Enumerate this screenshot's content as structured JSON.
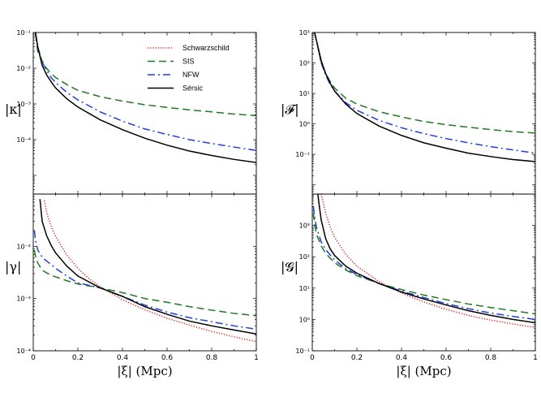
{
  "legend_placement": "top-right of top-left panel",
  "styles": {
    "Schwarzschild": {
      "color": "#e0201a",
      "dash": "1.2,2"
    },
    "SIS": {
      "color": "#1f7a1f",
      "dash": "9,5"
    },
    "NFW": {
      "color": "#1f3fdd",
      "dash": "9,4,2,4"
    },
    "Sérsic": {
      "color": "#000000",
      "dash": ""
    }
  },
  "chart_data": [
    {
      "id": "kappa",
      "type": "line",
      "ylabel": "|κ|",
      "xlabel": "",
      "xlim": [
        0,
        1
      ],
      "ylim": [
        3e-06,
        0.1
      ],
      "yscale": "log",
      "ytick_labels": [
        {
          "v": 0.1,
          "t": "10⁻¹"
        },
        {
          "v": 0.01,
          "t": "10⁻²"
        },
        {
          "v": 0.001,
          "t": "10⁻³"
        },
        {
          "v": 0.0001,
          "t": "10⁻⁴"
        }
      ],
      "xtick_labels": [],
      "legend": [
        "Schwarzschild",
        "SIS",
        "NFW",
        "Sérsic"
      ],
      "series": [
        {
          "name": "SIS",
          "x": [
            0.01,
            0.02,
            0.04,
            0.06,
            0.08,
            0.1,
            0.15,
            0.2,
            0.3,
            0.4,
            0.5,
            0.6,
            0.7,
            0.8,
            0.9,
            1.0
          ],
          "y": [
            0.09,
            0.03,
            0.016,
            0.0098,
            0.0072,
            0.0055,
            0.0035,
            0.0024,
            0.0016,
            0.0012,
            0.00095,
            0.0008,
            0.00068,
            0.0006,
            0.00052,
            0.00047
          ]
        },
        {
          "name": "NFW",
          "x": [
            0.01,
            0.02,
            0.04,
            0.06,
            0.08,
            0.1,
            0.15,
            0.2,
            0.3,
            0.4,
            0.5,
            0.6,
            0.7,
            0.8,
            0.9,
            1.0
          ],
          "y": [
            0.1,
            0.04,
            0.015,
            0.0085,
            0.0055,
            0.004,
            0.0021,
            0.0013,
            0.0006,
            0.00033,
            0.0002,
            0.00014,
            0.0001,
            7.8e-05,
            6.2e-05,
            5e-05
          ]
        },
        {
          "name": "Sérsic",
          "x": [
            0.01,
            0.02,
            0.04,
            0.06,
            0.08,
            0.1,
            0.15,
            0.2,
            0.3,
            0.4,
            0.5,
            0.6,
            0.7,
            0.8,
            0.9,
            1.0
          ],
          "y": [
            0.1,
            0.04,
            0.012,
            0.0065,
            0.0042,
            0.0028,
            0.0014,
            0.00082,
            0.00036,
            0.00019,
            0.00011,
            7e-05,
            4.8e-05,
            3.6e-05,
            2.8e-05,
            2.3e-05
          ]
        }
      ]
    },
    {
      "id": "F",
      "type": "line",
      "ylabel": "|𝓕|",
      "xlabel": "",
      "xlim": [
        0,
        1
      ],
      "ylim": [
        0.005,
        1000
      ],
      "yscale": "log",
      "ytick_labels": [
        {
          "v": 1000,
          "t": "10³"
        },
        {
          "v": 100,
          "t": "10²"
        },
        {
          "v": 10,
          "t": "10¹"
        },
        {
          "v": 1,
          "t": "10⁰"
        },
        {
          "v": 0.1,
          "t": "10⁻¹"
        }
      ],
      "xtick_labels": [],
      "series": [
        {
          "name": "SIS",
          "x": [
            0.01,
            0.02,
            0.04,
            0.06,
            0.08,
            0.1,
            0.15,
            0.2,
            0.3,
            0.4,
            0.5,
            0.6,
            0.7,
            0.8,
            0.9,
            1.0
          ],
          "y": [
            1000,
            500,
            100,
            45,
            25,
            15,
            7,
            4.5,
            2.5,
            1.7,
            1.2,
            0.95,
            0.78,
            0.65,
            0.56,
            0.5
          ]
        },
        {
          "name": "NFW",
          "x": [
            0.01,
            0.02,
            0.04,
            0.06,
            0.08,
            0.1,
            0.15,
            0.2,
            0.3,
            0.4,
            0.5,
            0.6,
            0.7,
            0.8,
            0.9,
            1.0
          ],
          "y": [
            1000,
            500,
            100,
            40,
            20,
            12,
            5,
            2.8,
            1.3,
            0.75,
            0.48,
            0.33,
            0.24,
            0.18,
            0.14,
            0.11
          ]
        },
        {
          "name": "Sérsic",
          "x": [
            0.01,
            0.02,
            0.04,
            0.06,
            0.08,
            0.1,
            0.15,
            0.2,
            0.3,
            0.4,
            0.5,
            0.6,
            0.7,
            0.8,
            0.9,
            1.0
          ],
          "y": [
            1000,
            500,
            120,
            45,
            22,
            12,
            4.5,
            2.2,
            0.85,
            0.42,
            0.24,
            0.16,
            0.11,
            0.085,
            0.068,
            0.058
          ]
        }
      ]
    },
    {
      "id": "gamma",
      "type": "line",
      "ylabel": "|γ|",
      "xlabel": "|ξ|  (Mpc)",
      "xlim": [
        0,
        1
      ],
      "ylim": [
        0.0001,
        0.1
      ],
      "yscale": "log",
      "ytick_labels": [
        {
          "v": 0.01,
          "t": "10⁻²"
        },
        {
          "v": 0.001,
          "t": "10⁻³"
        },
        {
          "v": 0.0001,
          "t": "10⁻⁴"
        }
      ],
      "xtick_labels": [
        "0",
        "0.2",
        "0.4",
        "0.6",
        "0.8",
        "1"
      ],
      "series": [
        {
          "name": "Schwarzschild",
          "x": [
            0.05,
            0.06,
            0.08,
            0.1,
            0.15,
            0.2,
            0.25,
            0.3,
            0.4,
            0.5,
            0.6,
            0.7,
            0.8,
            0.9,
            1.0
          ],
          "y": [
            0.075,
            0.045,
            0.024,
            0.0155,
            0.0068,
            0.0038,
            0.0024,
            0.00168,
            0.00095,
            0.00061,
            0.00042,
            0.00031,
            0.000235,
            0.000185,
            0.00015
          ]
        },
        {
          "name": "SIS",
          "x": [
            0.005,
            0.01,
            0.02,
            0.04,
            0.06,
            0.08,
            0.1,
            0.15,
            0.2,
            0.3,
            0.4,
            0.5,
            0.6,
            0.7,
            0.8,
            0.9,
            1.0
          ],
          "y": [
            0.0085,
            0.0065,
            0.0048,
            0.0035,
            0.0031,
            0.0028,
            0.0026,
            0.0022,
            0.0019,
            0.0016,
            0.0013,
            0.001,
            0.00085,
            0.0007,
            0.0006,
            0.00052,
            0.00047
          ]
        },
        {
          "name": "NFW",
          "x": [
            0.005,
            0.01,
            0.02,
            0.04,
            0.06,
            0.08,
            0.1,
            0.15,
            0.2,
            0.3,
            0.4,
            0.5,
            0.6,
            0.7,
            0.8,
            0.9,
            1.0
          ],
          "y": [
            0.02,
            0.013,
            0.0085,
            0.0062,
            0.0052,
            0.0045,
            0.0038,
            0.0027,
            0.002,
            0.0016,
            0.0011,
            0.00075,
            0.00055,
            0.00043,
            0.00036,
            0.0003,
            0.00026
          ]
        },
        {
          "name": "Sérsic",
          "x": [
            0.03,
            0.04,
            0.06,
            0.08,
            0.1,
            0.15,
            0.2,
            0.3,
            0.4,
            0.5,
            0.6,
            0.7,
            0.8,
            0.9,
            1.0
          ],
          "y": [
            0.08,
            0.03,
            0.016,
            0.0105,
            0.0075,
            0.0042,
            0.0027,
            0.0016,
            0.0011,
            0.0007,
            0.0005,
            0.00037,
            0.0003,
            0.00025,
            0.00021
          ]
        }
      ]
    },
    {
      "id": "G",
      "type": "line",
      "ylabel": "|𝓖|",
      "xlabel": "|ξ|  (Mpc)",
      "xlim": [
        0,
        1
      ],
      "ylim": [
        0.1,
        10000
      ],
      "yscale": "log",
      "ytick_labels": [
        {
          "v": 1000,
          "t": "10³"
        },
        {
          "v": 100,
          "t": "10²"
        },
        {
          "v": 10,
          "t": "10¹"
        },
        {
          "v": 1,
          "t": "10⁰"
        },
        {
          "v": 0.1,
          "t": "10⁻¹"
        }
      ],
      "xtick_labels": [
        "0",
        "0.2",
        "0.4",
        "0.6",
        "0.8",
        "1"
      ],
      "series": [
        {
          "name": "Schwarzschild",
          "x": [
            0.04,
            0.05,
            0.06,
            0.08,
            0.1,
            0.15,
            0.2,
            0.3,
            0.4,
            0.5,
            0.6,
            0.7,
            0.8,
            0.9,
            1.0
          ],
          "y": [
            10000,
            5000,
            2500,
            900,
            420,
            120,
            50,
            16,
            7,
            3.6,
            2.1,
            1.35,
            0.95,
            0.72,
            0.55
          ]
        },
        {
          "name": "SIS",
          "x": [
            0.005,
            0.01,
            0.02,
            0.04,
            0.06,
            0.08,
            0.1,
            0.15,
            0.2,
            0.3,
            0.4,
            0.5,
            0.6,
            0.7,
            0.8,
            0.9,
            1.0
          ],
          "y": [
            2500,
            1100,
            500,
            220,
            130,
            90,
            65,
            38,
            25,
            14,
            9,
            6,
            4.3,
            3.1,
            2.4,
            1.9,
            1.5
          ]
        },
        {
          "name": "NFW",
          "x": [
            0.005,
            0.01,
            0.02,
            0.04,
            0.06,
            0.08,
            0.1,
            0.15,
            0.2,
            0.3,
            0.4,
            0.5,
            0.6,
            0.7,
            0.8,
            0.9,
            1.0
          ],
          "y": [
            4000,
            2000,
            800,
            300,
            170,
            115,
            80,
            42,
            27,
            14,
            8,
            5,
            3.2,
            2.2,
            1.6,
            1.25,
            1.0
          ]
        },
        {
          "name": "Sérsic",
          "x": [
            0.025,
            0.03,
            0.04,
            0.06,
            0.08,
            0.1,
            0.15,
            0.2,
            0.3,
            0.4,
            0.5,
            0.6,
            0.7,
            0.8,
            0.9,
            1.0
          ],
          "y": [
            10000,
            5000,
            1500,
            380,
            180,
            110,
            50,
            30,
            14,
            7.5,
            4.5,
            2.9,
            1.9,
            1.35,
            1.0,
            0.78
          ]
        }
      ]
    }
  ]
}
